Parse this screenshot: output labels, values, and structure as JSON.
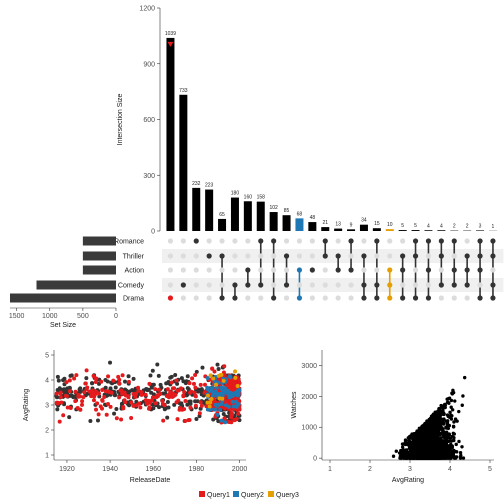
{
  "chart_data": [
    {
      "type": "bar",
      "ylabel": "Intersection Size",
      "ylim": [
        0,
        1200
      ],
      "yticks": [
        0,
        300,
        600,
        900,
        1200
      ],
      "values": [
        1039,
        733,
        232,
        223,
        65,
        180,
        160,
        158,
        102,
        85,
        68,
        48,
        21,
        13,
        9,
        34,
        15,
        10,
        5,
        5,
        4,
        4,
        2,
        2,
        3,
        1
      ],
      "value_labels": [
        "1039",
        "733",
        "232",
        "223",
        "65",
        "180",
        "160",
        "158",
        "102",
        "85",
        "68",
        "48",
        "21",
        "13",
        "9",
        "34",
        "15",
        "10",
        "5",
        "5",
        "4",
        "4",
        "2",
        "2",
        "3",
        "1"
      ],
      "bar_colors": [
        "#000000",
        "#000000",
        "#000000",
        "#000000",
        "#000000",
        "#000000",
        "#000000",
        "#000000",
        "#000000",
        "#000000",
        "#1f78b4",
        "#000000",
        "#000000",
        "#000000",
        "#000000",
        "#000000",
        "#000000",
        "#e69f00",
        "#000000",
        "#000000",
        "#000000",
        "#000000",
        "#000000",
        "#000000",
        "#000000",
        "#000000"
      ],
      "query_markers": [
        {
          "bar": 0,
          "color": "#e41a1c"
        }
      ],
      "sets": [
        "Romance",
        "Thriller",
        "Action",
        "Comedy",
        "Drama"
      ],
      "set_sizes": [
        500,
        500,
        500,
        1200,
        1600
      ],
      "set_size_label": "Set Size",
      "set_size_ticks": [
        1500,
        1000,
        500,
        0
      ],
      "matrix": [
        [
          4
        ],
        [
          3
        ],
        [
          0
        ],
        [
          1
        ],
        [
          1,
          4
        ],
        [
          3,
          4
        ],
        [
          2,
          3
        ],
        [
          0,
          3
        ],
        [
          0,
          4
        ],
        [
          1,
          3
        ],
        [
          2,
          4
        ],
        [
          2
        ],
        [
          0,
          1
        ],
        [
          1,
          2
        ],
        [
          0,
          2
        ],
        [
          1,
          3,
          4
        ],
        [
          0,
          3,
          4
        ],
        [
          2,
          3,
          4
        ],
        [
          1,
          2,
          4
        ],
        [
          0,
          1,
          4
        ],
        [
          0,
          2,
          4
        ],
        [
          0,
          1,
          3
        ],
        [
          0,
          2,
          3
        ],
        [
          1,
          2,
          3
        ],
        [
          0,
          1,
          2,
          4
        ],
        [
          0,
          1,
          3,
          4
        ]
      ],
      "dot_colors": {
        "0": "#e41a1c",
        "10": "#1f78b4",
        "17": "#e69f00"
      }
    },
    {
      "type": "scatter",
      "xlabel": "ReleaseDate",
      "ylabel": "AvgRating",
      "xlim": [
        1914,
        2003
      ],
      "ylim": [
        0.8,
        5.2
      ],
      "xticks": [
        1920,
        1940,
        1960,
        1980,
        2000
      ],
      "yticks": [
        1,
        2,
        3,
        4,
        5
      ],
      "series": [
        {
          "color": "#333333",
          "rule": "base"
        },
        {
          "color": "#e41a1c",
          "rule": "Query1"
        },
        {
          "color": "#1f78b4",
          "rule": "Query2"
        },
        {
          "color": "#e69f00",
          "rule": "Query3"
        }
      ]
    },
    {
      "type": "scatter",
      "xlabel": "AvgRating",
      "ylabel": "Watches",
      "xlim": [
        0.8,
        5.1
      ],
      "ylim": [
        -60,
        3500
      ],
      "xticks": [
        1,
        2,
        3,
        4,
        5
      ],
      "yticks": [
        0,
        1000,
        2000,
        3000
      ],
      "series": [
        {
          "color": "#000000"
        }
      ]
    }
  ],
  "legend": [
    {
      "name": "Query1",
      "color": "#e41a1c"
    },
    {
      "name": "Query2",
      "color": "#1f78b4"
    },
    {
      "name": "Query3",
      "color": "#e69f00"
    }
  ]
}
